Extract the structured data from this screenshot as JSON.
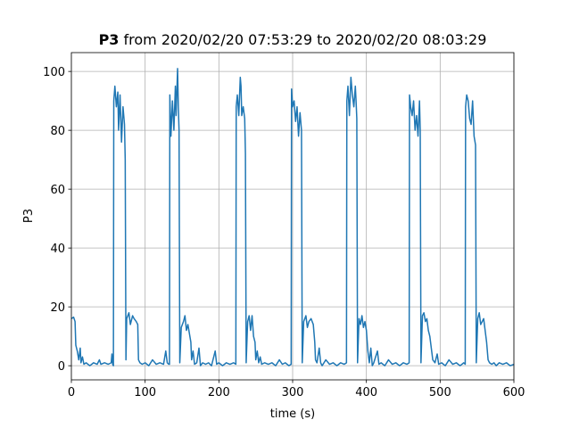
{
  "chart_data": {
    "type": "line",
    "title": {
      "bold": "P3",
      "text": "from 2020/02/20 07:53:29 to 2020/02/20 08:03:29"
    },
    "xlabel": "time (s)",
    "ylabel": "P3",
    "xlim": [
      0,
      600
    ],
    "xticks": [
      0,
      100,
      200,
      300,
      400,
      500,
      600
    ],
    "ylim": [
      -4.8,
      106.4
    ],
    "yticks": [
      0,
      20,
      40,
      60,
      80,
      100
    ],
    "grid": true,
    "color": "#1f77b4",
    "x": [
      0,
      3,
      5,
      6,
      8,
      10,
      12,
      13,
      15,
      17,
      20,
      25,
      30,
      35,
      38,
      40,
      45,
      50,
      54,
      55,
      56,
      57,
      57.5,
      59,
      61,
      63,
      64,
      66,
      68,
      70,
      72,
      73,
      74,
      75,
      78,
      80,
      83,
      85,
      88,
      90,
      91,
      93,
      96,
      100,
      105,
      110,
      115,
      120,
      125,
      128,
      130,
      132,
      133,
      133.5,
      135,
      137,
      139,
      141,
      142,
      144,
      145,
      146,
      147,
      149,
      152,
      154,
      156,
      158,
      160,
      162,
      163,
      165,
      167,
      170,
      173,
      175,
      178,
      182,
      186,
      190,
      195,
      197,
      200,
      205,
      210,
      215,
      220,
      223,
      223.5,
      225,
      227,
      229,
      230,
      231,
      233,
      235,
      236,
      237,
      239,
      241,
      243,
      245,
      247,
      249,
      250,
      252,
      254,
      256,
      258,
      262,
      267,
      272,
      277,
      282,
      286,
      290,
      295,
      298,
      298.5,
      300,
      302,
      304,
      306,
      308,
      310,
      312,
      313,
      315,
      318,
      320,
      322,
      325,
      328,
      330,
      331,
      333,
      336,
      338,
      340,
      345,
      350,
      355,
      360,
      365,
      370,
      373,
      373.5,
      375,
      377,
      379,
      381,
      383,
      385,
      386,
      387,
      388,
      390,
      392,
      394,
      396,
      398,
      400,
      402,
      404,
      406,
      408,
      410,
      415,
      417,
      420,
      425,
      430,
      435,
      440,
      445,
      450,
      455,
      458,
      458.5,
      460,
      462,
      464,
      466,
      468,
      470,
      472,
      473,
      474,
      476,
      478,
      480,
      482,
      484,
      486,
      488,
      490,
      493,
      496,
      498,
      502,
      507,
      512,
      517,
      522,
      527,
      532,
      534,
      534.5,
      536,
      538,
      540,
      542,
      544,
      546,
      548,
      549,
      551,
      553,
      555,
      557,
      559,
      561,
      563,
      565,
      567,
      570,
      573,
      576,
      580,
      585,
      590,
      595,
      600
    ],
    "values": [
      16,
      16.5,
      15,
      7,
      5,
      2,
      6,
      1,
      3,
      0.5,
      1,
      0,
      1,
      0.5,
      2,
      0.5,
      1,
      0.5,
      1,
      4,
      0.5,
      0,
      90,
      95,
      88,
      93,
      80,
      92,
      76,
      88,
      82,
      70,
      2,
      16,
      18,
      14,
      17,
      16,
      15,
      14,
      2,
      1,
      0.5,
      1,
      0,
      2,
      0.5,
      1,
      0.5,
      5,
      1,
      0.5,
      0.5,
      92,
      78,
      90,
      80,
      95,
      85,
      101,
      88,
      80,
      1,
      13,
      15,
      17,
      12,
      14,
      11,
      8,
      2,
      5,
      0.5,
      1,
      6,
      0,
      1,
      0.5,
      1,
      0,
      5,
      0.5,
      1,
      0,
      1,
      0.5,
      1,
      0.5,
      88,
      92,
      85,
      98,
      95,
      85,
      88,
      84,
      72,
      1,
      15,
      17,
      12,
      17,
      10,
      8,
      2,
      5,
      1,
      3,
      0.5,
      1,
      0.5,
      1,
      0,
      2,
      0.5,
      1,
      0,
      0.5,
      94,
      88,
      90,
      83,
      88,
      78,
      86,
      80,
      1,
      15,
      17,
      13,
      15,
      16,
      14,
      8,
      2,
      1,
      6,
      1,
      0,
      2,
      0.5,
      1,
      0,
      1,
      0.5,
      1,
      90,
      95,
      85,
      98,
      92,
      88,
      95,
      90,
      84,
      1,
      16,
      14,
      17,
      13,
      15,
      12,
      5,
      1,
      6,
      0,
      1,
      5,
      0.5,
      1,
      0,
      2,
      0.5,
      1,
      0,
      1,
      0.5,
      1,
      92,
      88,
      85,
      90,
      80,
      85,
      78,
      90,
      80,
      1,
      17,
      18,
      15,
      16,
      12,
      10,
      6,
      2,
      1,
      4,
      0.5,
      1,
      0,
      2,
      0.5,
      1,
      0,
      1,
      0.5,
      88,
      92,
      90,
      84,
      82,
      90,
      78,
      75,
      1,
      16,
      18,
      14,
      15,
      16,
      12,
      8,
      2,
      1,
      0.5,
      1,
      0,
      1,
      0.5,
      1,
      0,
      0.5
    ]
  }
}
